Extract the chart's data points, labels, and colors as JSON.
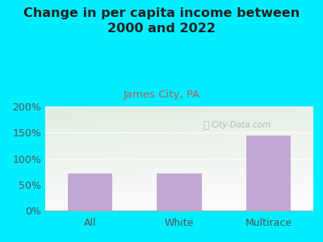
{
  "title": "Change in per capita income between\n2000 and 2022",
  "subtitle": "James City, PA",
  "categories": [
    "All",
    "White",
    "Multirace"
  ],
  "values": [
    72,
    71,
    144
  ],
  "bar_color": "#c4a8d4",
  "title_fontsize": 11.5,
  "subtitle_fontsize": 9.5,
  "subtitle_color": "#b06060",
  "tick_label_fontsize": 9,
  "background_outer": "#00eeff",
  "ylim": [
    0,
    200
  ],
  "yticks": [
    0,
    50,
    100,
    150,
    200
  ],
  "ytick_labels": [
    "0%",
    "50%",
    "100%",
    "150%",
    "200%"
  ],
  "watermark": "City-Data.com",
  "plot_bg_top_left": "#ddeedd",
  "plot_bg_top_right": "#e8f0e8",
  "plot_bg_bottom": "#f0f5e0",
  "title_color": "#222222"
}
